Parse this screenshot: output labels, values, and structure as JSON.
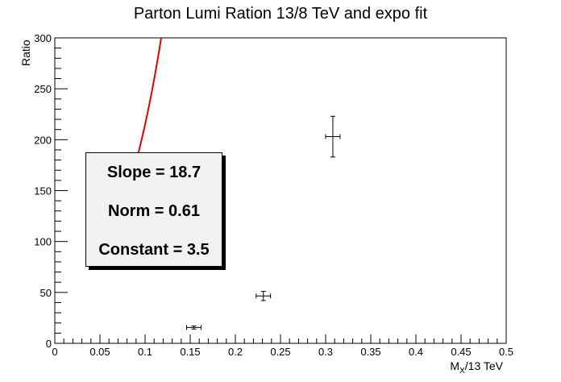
{
  "chart_data": {
    "type": "scatter",
    "title": "Parton Lumi Ration 13/8 TeV and expo fit",
    "xlabel_main": "M",
    "xlabel_sub": "X",
    "xlabel_rest": "/13 TeV",
    "ylabel": "Ratio",
    "xlim": [
      0,
      0.5
    ],
    "ylim": [
      0,
      300
    ],
    "x_ticks": [
      "0",
      "0.05",
      "0.1",
      "0.15",
      "0.2",
      "0.25",
      "0.3",
      "0.35",
      "0.4",
      "0.45",
      "0.5"
    ],
    "y_ticks": [
      "0",
      "50",
      "100",
      "150",
      "200",
      "250",
      "300"
    ],
    "points": [
      {
        "x": 0.154,
        "y": 15.5,
        "xerr": 0.008,
        "yerr": 1.5
      },
      {
        "x": 0.231,
        "y": 46.5,
        "xerr": 0.008,
        "yerr": 4.5
      },
      {
        "x": 0.308,
        "y": 203,
        "xerr": 0.008,
        "yerr": 20
      }
    ],
    "fit": {
      "type": "expo",
      "color": "#e00000",
      "x_start": 0.05,
      "exp_const": 3.5,
      "slope": 18.7
    },
    "stats": {
      "slope": "Slope = 18.7",
      "norm": "Norm = 0.61",
      "constant": "Constant = 3.5"
    }
  }
}
